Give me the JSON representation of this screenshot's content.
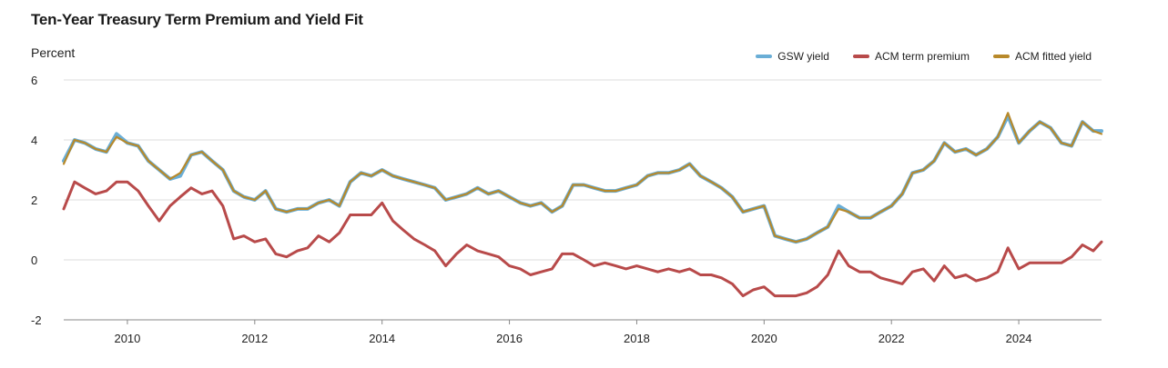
{
  "chart_data": {
    "type": "line",
    "title": "Ten-Year Treasury Term Premium and Yield Fit",
    "ylabel": "Percent",
    "xlabel": "",
    "xlim": [
      2009.0,
      2025.3
    ],
    "ylim": [
      -2,
      6
    ],
    "yticks": [
      -2,
      0,
      2,
      4,
      6
    ],
    "xticks": [
      2010,
      2012,
      2014,
      2016,
      2018,
      2020,
      2022,
      2024
    ],
    "grid": "horizontal",
    "legend_position": "top-right",
    "x": [
      2009.0,
      2009.17,
      2009.33,
      2009.5,
      2009.67,
      2009.83,
      2010.0,
      2010.17,
      2010.33,
      2010.5,
      2010.67,
      2010.83,
      2011.0,
      2011.17,
      2011.33,
      2011.5,
      2011.67,
      2011.83,
      2012.0,
      2012.17,
      2012.33,
      2012.5,
      2012.67,
      2012.83,
      2013.0,
      2013.17,
      2013.33,
      2013.5,
      2013.67,
      2013.83,
      2014.0,
      2014.17,
      2014.33,
      2014.5,
      2014.67,
      2014.83,
      2015.0,
      2015.17,
      2015.33,
      2015.5,
      2015.67,
      2015.83,
      2016.0,
      2016.17,
      2016.33,
      2016.5,
      2016.67,
      2016.83,
      2017.0,
      2017.17,
      2017.33,
      2017.5,
      2017.67,
      2017.83,
      2018.0,
      2018.17,
      2018.33,
      2018.5,
      2018.67,
      2018.83,
      2019.0,
      2019.17,
      2019.33,
      2019.5,
      2019.67,
      2019.83,
      2020.0,
      2020.17,
      2020.33,
      2020.5,
      2020.67,
      2020.83,
      2021.0,
      2021.17,
      2021.33,
      2021.5,
      2021.67,
      2021.83,
      2022.0,
      2022.17,
      2022.33,
      2022.5,
      2022.67,
      2022.83,
      2023.0,
      2023.17,
      2023.33,
      2023.5,
      2023.67,
      2023.83,
      2024.0,
      2024.17,
      2024.33,
      2024.5,
      2024.67,
      2024.83,
      2025.0,
      2025.17,
      2025.3
    ],
    "series": [
      {
        "name": "GSW yield",
        "color": "#6aaed6",
        "values": [
          3.3,
          4.0,
          3.9,
          3.7,
          3.6,
          4.2,
          3.9,
          3.8,
          3.3,
          3.0,
          2.7,
          2.8,
          3.5,
          3.6,
          3.3,
          3.0,
          2.3,
          2.1,
          2.0,
          2.3,
          1.7,
          1.6,
          1.7,
          1.7,
          1.9,
          2.0,
          1.8,
          2.6,
          2.9,
          2.8,
          3.0,
          2.8,
          2.7,
          2.6,
          2.5,
          2.4,
          2.0,
          2.1,
          2.2,
          2.4,
          2.2,
          2.3,
          2.1,
          1.9,
          1.8,
          1.9,
          1.6,
          1.8,
          2.5,
          2.5,
          2.4,
          2.3,
          2.3,
          2.4,
          2.5,
          2.8,
          2.9,
          2.9,
          3.0,
          3.2,
          2.8,
          2.6,
          2.4,
          2.1,
          1.6,
          1.7,
          1.8,
          0.8,
          0.7,
          0.6,
          0.7,
          0.9,
          1.1,
          1.8,
          1.6,
          1.4,
          1.4,
          1.6,
          1.8,
          2.2,
          2.9,
          3.0,
          3.3,
          3.9,
          3.6,
          3.7,
          3.5,
          3.7,
          4.1,
          4.8,
          3.9,
          4.3,
          4.6,
          4.4,
          3.9,
          3.8,
          4.6,
          4.3,
          4.3
        ]
      },
      {
        "name": "ACM term premium",
        "color": "#b84a4a",
        "values": [
          1.7,
          2.6,
          2.4,
          2.2,
          2.3,
          2.6,
          2.6,
          2.3,
          1.8,
          1.3,
          1.8,
          2.1,
          2.4,
          2.2,
          2.3,
          1.8,
          0.7,
          0.8,
          0.6,
          0.7,
          0.2,
          0.1,
          0.3,
          0.4,
          0.8,
          0.6,
          0.9,
          1.5,
          1.5,
          1.5,
          1.9,
          1.3,
          1.0,
          0.7,
          0.5,
          0.3,
          -0.2,
          0.2,
          0.5,
          0.3,
          0.2,
          0.1,
          -0.2,
          -0.3,
          -0.5,
          -0.4,
          -0.3,
          0.2,
          0.2,
          0.0,
          -0.2,
          -0.1,
          -0.2,
          -0.3,
          -0.2,
          -0.3,
          -0.4,
          -0.3,
          -0.4,
          -0.3,
          -0.5,
          -0.5,
          -0.6,
          -0.8,
          -1.2,
          -1.0,
          -0.9,
          -1.2,
          -1.2,
          -1.2,
          -1.1,
          -0.9,
          -0.5,
          0.3,
          -0.2,
          -0.4,
          -0.4,
          -0.6,
          -0.7,
          -0.8,
          -0.4,
          -0.3,
          -0.7,
          -0.2,
          -0.6,
          -0.5,
          -0.7,
          -0.6,
          -0.4,
          0.4,
          -0.3,
          -0.1,
          -0.1,
          -0.1,
          -0.1,
          0.1,
          0.5,
          0.3,
          0.6
        ]
      },
      {
        "name": "ACM fitted yield",
        "color": "#b8892a",
        "values": [
          3.2,
          4.0,
          3.9,
          3.7,
          3.6,
          4.1,
          3.9,
          3.8,
          3.3,
          3.0,
          2.7,
          2.9,
          3.5,
          3.6,
          3.3,
          3.0,
          2.3,
          2.1,
          2.0,
          2.3,
          1.7,
          1.6,
          1.7,
          1.7,
          1.9,
          2.0,
          1.8,
          2.6,
          2.9,
          2.8,
          3.0,
          2.8,
          2.7,
          2.6,
          2.5,
          2.4,
          2.0,
          2.1,
          2.2,
          2.4,
          2.2,
          2.3,
          2.1,
          1.9,
          1.8,
          1.9,
          1.6,
          1.8,
          2.5,
          2.5,
          2.4,
          2.3,
          2.3,
          2.4,
          2.5,
          2.8,
          2.9,
          2.9,
          3.0,
          3.2,
          2.8,
          2.6,
          2.4,
          2.1,
          1.6,
          1.7,
          1.8,
          0.8,
          0.7,
          0.6,
          0.7,
          0.9,
          1.1,
          1.7,
          1.6,
          1.4,
          1.4,
          1.6,
          1.8,
          2.2,
          2.9,
          3.0,
          3.3,
          3.9,
          3.6,
          3.7,
          3.5,
          3.7,
          4.1,
          4.9,
          3.9,
          4.3,
          4.6,
          4.4,
          3.9,
          3.8,
          4.6,
          4.3,
          4.2
        ]
      }
    ]
  }
}
